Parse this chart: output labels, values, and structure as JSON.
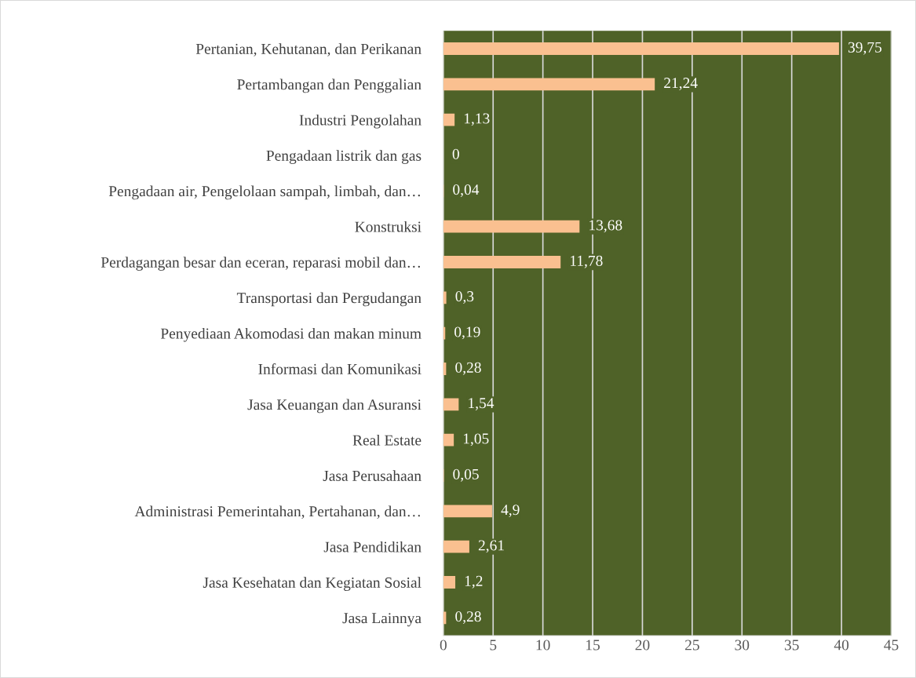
{
  "chart_data": {
    "type": "bar",
    "orientation": "horizontal",
    "categories": [
      "Pertanian, Kehutanan, dan Perikanan",
      "Pertambangan dan Penggalian",
      "Industri Pengolahan",
      "Pengadaan listrik dan gas",
      "Pengadaan air, Pengelolaan sampah, limbah, dan…",
      "Konstruksi",
      "Perdagangan besar dan eceran, reparasi mobil dan…",
      "Transportasi dan Pergudangan",
      "Penyediaan Akomodasi dan makan minum",
      "Informasi dan Komunikasi",
      "Jasa Keuangan dan Asuransi",
      "Real Estate",
      "Jasa Perusahaan",
      "Administrasi Pemerintahan, Pertahanan, dan…",
      "Jasa Pendidikan",
      "Jasa Kesehatan dan Kegiatan Sosial",
      "Jasa Lainnya"
    ],
    "values": [
      39.75,
      21.24,
      1.13,
      0,
      0.04,
      13.68,
      11.78,
      0.3,
      0.19,
      0.28,
      1.54,
      1.05,
      0.05,
      4.9,
      2.61,
      1.2,
      0.28
    ],
    "value_labels": [
      "39,75",
      "21,24",
      "1,13",
      "0",
      "0,04",
      "13,68",
      "11,78",
      "0,3",
      "0,19",
      "0,28",
      "1,54",
      "1,05",
      "0,05",
      "4,9",
      "2,61",
      "1,2",
      "0,28"
    ],
    "color": "#fac090",
    "xlim": [
      0,
      45
    ],
    "xticks": [
      0,
      5,
      10,
      15,
      20,
      25,
      30,
      35,
      40,
      45
    ],
    "grid": "x",
    "legend": false
  }
}
